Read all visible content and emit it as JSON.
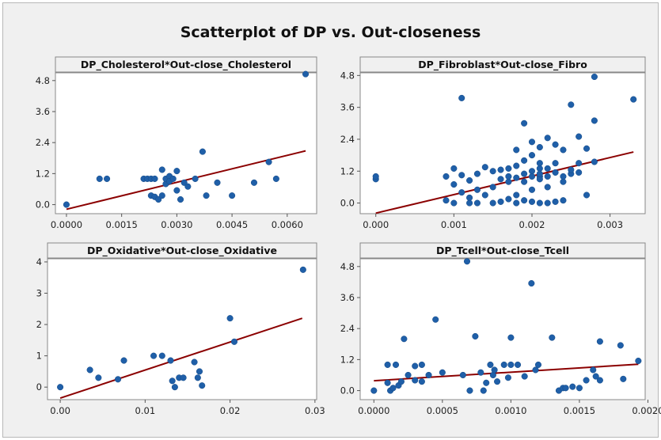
{
  "title": "Scatterplot of DP vs. Out-closeness",
  "colors": {
    "background": "#f0f0f0",
    "plot_area": "#ffffff",
    "point": "#1f5fa8",
    "fit_line": "#8b0000"
  },
  "chart_data": [
    {
      "type": "scatter",
      "title": "DP_Cholesterol*Out-close_Cholesterol",
      "xlabel": "",
      "ylabel": "",
      "xlim": [
        -0.0003,
        0.0068
      ],
      "ylim": [
        -0.35,
        5.1
      ],
      "xticks": [
        0,
        0.0015,
        0.003,
        0.0045,
        0.006
      ],
      "xtick_labels": [
        "0.0000",
        "0.0015",
        "0.0030",
        "0.0045",
        "0.0060"
      ],
      "yticks": [
        0,
        1.2,
        2.4,
        3.6,
        4.8
      ],
      "ytick_labels": [
        "0.0",
        "1.2",
        "2.4",
        "3.6",
        "4.8"
      ],
      "fit_line": {
        "x": [
          0,
          0.0065
        ],
        "y": [
          -0.18,
          2.08
        ]
      },
      "points": [
        [
          0,
          0.0
        ],
        [
          0.0009,
          1.0
        ],
        [
          0.0011,
          1.0
        ],
        [
          0.0021,
          1.0
        ],
        [
          0.0022,
          1.0
        ],
        [
          0.0023,
          1.0
        ],
        [
          0.0024,
          1.0
        ],
        [
          0.0023,
          0.35
        ],
        [
          0.0024,
          0.3
        ],
        [
          0.0025,
          0.2
        ],
        [
          0.0026,
          0.35
        ],
        [
          0.0026,
          1.35
        ],
        [
          0.0027,
          0.8
        ],
        [
          0.0027,
          1.0
        ],
        [
          0.0028,
          1.1
        ],
        [
          0.0028,
          0.9
        ],
        [
          0.0029,
          1.0
        ],
        [
          0.003,
          1.3
        ],
        [
          0.003,
          0.55
        ],
        [
          0.0031,
          0.2
        ],
        [
          0.0032,
          0.85
        ],
        [
          0.0033,
          0.7
        ],
        [
          0.0035,
          1.0
        ],
        [
          0.0037,
          2.05
        ],
        [
          0.0038,
          0.35
        ],
        [
          0.0041,
          0.85
        ],
        [
          0.0045,
          0.35
        ],
        [
          0.0051,
          0.85
        ],
        [
          0.0055,
          1.65
        ],
        [
          0.0057,
          1.0
        ],
        [
          0.0065,
          5.05
        ]
      ]
    },
    {
      "type": "scatter",
      "title": "DP_Fibroblast*Out-close_Fibro",
      "xlabel": "",
      "ylabel": "",
      "xlim": [
        -0.0002,
        0.00345
      ],
      "ylim": [
        -0.4,
        4.9
      ],
      "xticks": [
        0,
        0.001,
        0.002,
        0.003
      ],
      "xtick_labels": [
        "0.000",
        "0.001",
        "0.002",
        "0.003"
      ],
      "yticks": [
        0,
        1.2,
        2.4,
        3.6,
        4.8
      ],
      "ytick_labels": [
        "0.0",
        "1.2",
        "2.4",
        "3.6",
        "4.8"
      ],
      "fit_line": {
        "x": [
          0,
          0.0033
        ],
        "y": [
          -0.38,
          1.92
        ]
      },
      "points": [
        [
          0,
          0.9
        ],
        [
          0,
          1.0
        ],
        [
          0.0009,
          0.1
        ],
        [
          0.0009,
          1.0
        ],
        [
          0.001,
          0.7
        ],
        [
          0.001,
          1.3
        ],
        [
          0.001,
          0.0
        ],
        [
          0.0011,
          3.95
        ],
        [
          0.0011,
          0.4
        ],
        [
          0.0011,
          1.05
        ],
        [
          0.0012,
          0.0
        ],
        [
          0.0012,
          0.2
        ],
        [
          0.0012,
          0.85
        ],
        [
          0.0013,
          0.5
        ],
        [
          0.0013,
          1.1
        ],
        [
          0.0013,
          0.0
        ],
        [
          0.0014,
          0.3
        ],
        [
          0.0014,
          1.35
        ],
        [
          0.0015,
          0.0
        ],
        [
          0.0015,
          0.6
        ],
        [
          0.0015,
          1.2
        ],
        [
          0.0016,
          0.05
        ],
        [
          0.0016,
          0.9
        ],
        [
          0.0016,
          1.25
        ],
        [
          0.0017,
          0.15
        ],
        [
          0.0017,
          0.8
        ],
        [
          0.0017,
          1.3
        ],
        [
          0.0017,
          1.0
        ],
        [
          0.0018,
          0.0
        ],
        [
          0.0018,
          0.95
        ],
        [
          0.0018,
          1.4
        ],
        [
          0.0018,
          2.0
        ],
        [
          0.0018,
          0.3
        ],
        [
          0.0019,
          1.1
        ],
        [
          0.0019,
          0.1
        ],
        [
          0.0019,
          3.0
        ],
        [
          0.0019,
          1.6
        ],
        [
          0.0019,
          0.8
        ],
        [
          0.002,
          1.2
        ],
        [
          0.002,
          1.0
        ],
        [
          0.002,
          0.05
        ],
        [
          0.002,
          2.3
        ],
        [
          0.002,
          1.8
        ],
        [
          0.002,
          0.5
        ],
        [
          0.0021,
          1.0
        ],
        [
          0.0021,
          1.3
        ],
        [
          0.0021,
          0.0
        ],
        [
          0.0021,
          0.9
        ],
        [
          0.0021,
          2.1
        ],
        [
          0.0021,
          1.1
        ],
        [
          0.0021,
          1.5
        ],
        [
          0.0022,
          0.0
        ],
        [
          0.0022,
          0.6
        ],
        [
          0.0022,
          1.0
        ],
        [
          0.0022,
          1.3
        ],
        [
          0.0022,
          2.45
        ],
        [
          0.0023,
          0.05
        ],
        [
          0.0023,
          1.15
        ],
        [
          0.0023,
          1.5
        ],
        [
          0.0023,
          2.2
        ],
        [
          0.0024,
          0.8
        ],
        [
          0.0024,
          1.0
        ],
        [
          0.0024,
          2.0
        ],
        [
          0.0024,
          0.1
        ],
        [
          0.0025,
          1.1
        ],
        [
          0.0025,
          1.25
        ],
        [
          0.0025,
          3.7
        ],
        [
          0.0026,
          1.5
        ],
        [
          0.0026,
          2.5
        ],
        [
          0.0026,
          1.15
        ],
        [
          0.0027,
          2.05
        ],
        [
          0.0027,
          0.3
        ],
        [
          0.0028,
          3.1
        ],
        [
          0.0028,
          4.75
        ],
        [
          0.0028,
          1.55
        ],
        [
          0.0033,
          3.9
        ]
      ]
    },
    {
      "type": "scatter",
      "title": "DP_Oxidative*Out-close_Oxidative",
      "xlabel": "",
      "ylabel": "",
      "xlim": [
        -0.0015,
        0.0302
      ],
      "ylim": [
        -0.4,
        4.1
      ],
      "xticks": [
        0,
        0.01,
        0.02,
        0.03
      ],
      "xtick_labels": [
        "0.00",
        "0.01",
        "0.02",
        "0.03"
      ],
      "yticks": [
        0,
        1,
        2,
        3,
        4
      ],
      "ytick_labels": [
        "0",
        "1",
        "2",
        "3",
        "4"
      ],
      "fit_line": {
        "x": [
          0,
          0.0285
        ],
        "y": [
          -0.35,
          2.2
        ]
      },
      "points": [
        [
          0,
          0.0
        ],
        [
          0.0035,
          0.55
        ],
        [
          0.0045,
          0.3
        ],
        [
          0.0068,
          0.25
        ],
        [
          0.0075,
          0.85
        ],
        [
          0.011,
          1.0
        ],
        [
          0.012,
          1.0
        ],
        [
          0.013,
          0.85
        ],
        [
          0.0132,
          0.2
        ],
        [
          0.0135,
          0.0
        ],
        [
          0.014,
          0.3
        ],
        [
          0.0145,
          0.3
        ],
        [
          0.0158,
          0.8
        ],
        [
          0.0162,
          0.3
        ],
        [
          0.0164,
          0.5
        ],
        [
          0.0167,
          0.05
        ],
        [
          0.02,
          2.2
        ],
        [
          0.0205,
          1.45
        ],
        [
          0.0286,
          3.75
        ]
      ]
    },
    {
      "type": "scatter",
      "title": "DP_Tcell*Out-close_Tcell",
      "xlabel": "",
      "ylabel": "",
      "xlim": [
        -0.0001,
        0.00198
      ],
      "ylim": [
        -0.35,
        5.1
      ],
      "xticks": [
        0,
        0.0005,
        0.001,
        0.0015,
        0.002
      ],
      "xtick_labels": [
        "0.0000",
        "0.0005",
        "0.0010",
        "0.0015",
        "0.0020"
      ],
      "yticks": [
        0,
        1.2,
        2.4,
        3.6,
        4.8
      ],
      "ytick_labels": [
        "0.0",
        "1.2",
        "2.4",
        "3.6",
        "4.8"
      ],
      "fit_line": {
        "x": [
          0,
          0.00193
        ],
        "y": [
          0.38,
          1.02
        ]
      },
      "points": [
        [
          0,
          0.0
        ],
        [
          0.0001,
          0.3
        ],
        [
          0.0001,
          1.0
        ],
        [
          0.00012,
          0.0
        ],
        [
          0.00014,
          0.1
        ],
        [
          0.00016,
          1.0
        ],
        [
          0.00018,
          0.2
        ],
        [
          0.0002,
          0.35
        ],
        [
          0.00022,
          2.0
        ],
        [
          0.00025,
          0.6
        ],
        [
          0.0003,
          0.95
        ],
        [
          0.0003,
          0.4
        ],
        [
          0.00035,
          1.0
        ],
        [
          0.00035,
          0.35
        ],
        [
          0.0004,
          0.6
        ],
        [
          0.00045,
          2.75
        ],
        [
          0.0005,
          0.7
        ],
        [
          0.00065,
          0.6
        ],
        [
          0.00068,
          5.0
        ],
        [
          0.0007,
          0.0
        ],
        [
          0.00074,
          2.1
        ],
        [
          0.00078,
          0.7
        ],
        [
          0.0008,
          0.0
        ],
        [
          0.00082,
          0.3
        ],
        [
          0.00085,
          1.0
        ],
        [
          0.00087,
          0.6
        ],
        [
          0.00088,
          0.8
        ],
        [
          0.0009,
          0.35
        ],
        [
          0.00095,
          1.0
        ],
        [
          0.00098,
          0.5
        ],
        [
          0.001,
          2.05
        ],
        [
          0.001,
          1.0
        ],
        [
          0.00105,
          1.0
        ],
        [
          0.0011,
          0.55
        ],
        [
          0.00115,
          4.15
        ],
        [
          0.00118,
          0.8
        ],
        [
          0.0012,
          1.0
        ],
        [
          0.0013,
          2.05
        ],
        [
          0.00135,
          0.0
        ],
        [
          0.00138,
          0.1
        ],
        [
          0.0014,
          0.1
        ],
        [
          0.00145,
          0.15
        ],
        [
          0.0015,
          0.1
        ],
        [
          0.00155,
          0.4
        ],
        [
          0.0016,
          0.8
        ],
        [
          0.00162,
          0.55
        ],
        [
          0.00165,
          1.9
        ],
        [
          0.00165,
          0.4
        ],
        [
          0.0018,
          1.75
        ],
        [
          0.00182,
          0.45
        ],
        [
          0.00193,
          1.15
        ]
      ]
    }
  ]
}
